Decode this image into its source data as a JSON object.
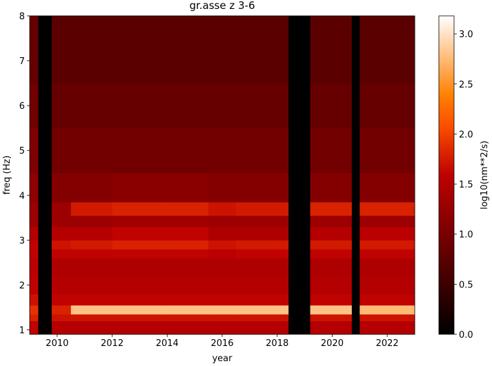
{
  "chart_data": {
    "type": "heatmap",
    "title": "gr.asse z 3-6",
    "xlabel": "year",
    "ylabel": "freq (Hz)",
    "x_edges": [
      2009.0,
      2009.3,
      2009.8,
      2010.5,
      2012,
      2014,
      2015.5,
      2016.5,
      2018.4,
      2019.2,
      2020.7,
      2021.0,
      2023.0
    ],
    "y_edges": [
      0.9,
      1.2,
      1.35,
      1.55,
      1.8,
      2.2,
      2.6,
      2.8,
      3.0,
      3.3,
      3.55,
      3.85,
      4.5,
      5.5,
      6.5,
      8.0
    ],
    "values": [
      [
        1.6,
        null,
        1.5,
        1.5,
        1.5,
        1.5,
        1.5,
        1.5,
        null,
        1.5,
        null,
        1.5
      ],
      [
        1.8,
        null,
        1.7,
        1.7,
        1.7,
        1.7,
        1.7,
        1.7,
        null,
        1.7,
        null,
        1.7
      ],
      [
        1.9,
        null,
        1.8,
        2.8,
        2.8,
        2.8,
        2.8,
        2.8,
        null,
        2.8,
        null,
        2.75
      ],
      [
        1.7,
        null,
        1.6,
        1.6,
        1.6,
        1.6,
        1.6,
        1.6,
        null,
        1.6,
        null,
        1.6
      ],
      [
        1.6,
        null,
        1.5,
        1.5,
        1.5,
        1.5,
        1.5,
        1.5,
        null,
        1.5,
        null,
        1.5
      ],
      [
        1.55,
        null,
        1.45,
        1.45,
        1.45,
        1.45,
        1.45,
        1.45,
        null,
        1.45,
        null,
        1.45
      ],
      [
        1.6,
        null,
        1.6,
        1.6,
        1.6,
        1.6,
        1.55,
        1.6,
        null,
        1.6,
        null,
        1.6
      ],
      [
        1.6,
        null,
        1.7,
        1.75,
        1.8,
        1.8,
        1.7,
        1.75,
        null,
        1.75,
        null,
        1.75
      ],
      [
        1.5,
        null,
        1.5,
        1.5,
        1.6,
        1.6,
        1.45,
        1.45,
        null,
        1.5,
        null,
        1.55
      ],
      [
        1.3,
        null,
        1.3,
        1.3,
        1.35,
        1.35,
        1.3,
        1.3,
        null,
        1.3,
        null,
        1.3
      ],
      [
        1.3,
        null,
        1.3,
        1.75,
        1.8,
        1.8,
        1.7,
        1.75,
        null,
        1.8,
        null,
        1.8
      ],
      [
        1.2,
        null,
        1.1,
        1.1,
        1.15,
        1.15,
        1.1,
        1.1,
        null,
        1.1,
        null,
        1.1
      ],
      [
        1.05,
        null,
        0.95,
        0.95,
        0.95,
        0.95,
        0.95,
        0.95,
        null,
        0.95,
        null,
        0.95
      ],
      [
        0.95,
        null,
        0.85,
        0.85,
        0.85,
        0.85,
        0.85,
        0.85,
        null,
        0.85,
        null,
        0.85
      ],
      [
        0.85,
        null,
        0.75,
        0.75,
        0.75,
        0.75,
        0.75,
        0.75,
        null,
        0.75,
        null,
        0.75
      ]
    ],
    "xlim": [
      2009.0,
      2023.0
    ],
    "ylim": [
      0.9,
      8.0
    ],
    "xticks": [
      2010,
      2012,
      2014,
      2016,
      2018,
      2020,
      2022
    ],
    "yticks": [
      1,
      2,
      3,
      4,
      5,
      6,
      7,
      8
    ],
    "colormap": "gist_heat",
    "clim": [
      0,
      3.18
    ],
    "colorbar_label": "log10(nm**2/s)",
    "colorbar_ticks": [
      {
        "value": 0,
        "label": "0.0"
      },
      0.5,
      {
        "value": 1,
        "label": "1.0"
      },
      1.5,
      {
        "value": 2,
        "label": "2.0"
      },
      2.5,
      {
        "value": 3,
        "label": "3.0"
      }
    ]
  }
}
